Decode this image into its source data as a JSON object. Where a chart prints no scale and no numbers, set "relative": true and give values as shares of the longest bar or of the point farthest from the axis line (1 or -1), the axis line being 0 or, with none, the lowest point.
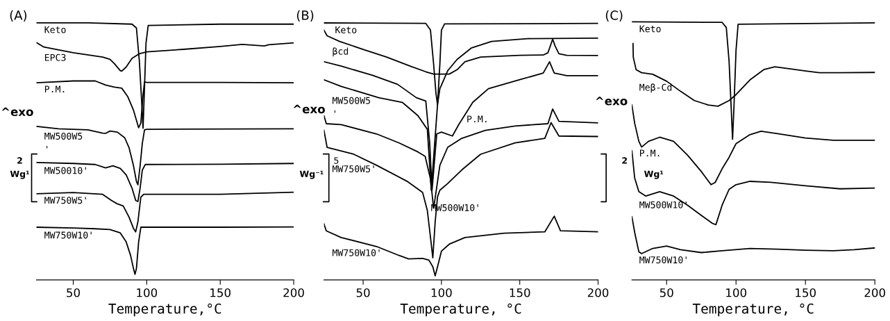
{
  "chart_data": [
    {
      "type": "line",
      "title": "(A)",
      "xlabel": "Temperature,°C",
      "relative": true,
      "xlim": [
        25,
        200
      ],
      "xticks": [
        50,
        100,
        150,
        200
      ],
      "tick_labels": "x",
      "annotations": [
        "^exo",
        "2",
        "Wg¹"
      ],
      "series": [
        {
          "name": "Keto",
          "color": "#000000",
          "x": [
            25,
            60,
            90,
            93,
            95,
            96.5,
            97.5,
            98.5,
            99.5,
            101,
            150,
            200
          ],
          "values": [
            1.0,
            1.0,
            0.995,
            0.98,
            0.85,
            0.7,
            0.59,
            0.75,
            0.92,
            0.99,
            0.995,
            0.995
          ]
        },
        {
          "name": "EPC3",
          "color": "#000000",
          "x": [
            25,
            30,
            50,
            70,
            75,
            78,
            82,
            83,
            86,
            90,
            95,
            100,
            125,
            150,
            165,
            180,
            183,
            200
          ],
          "values": [
            0.923,
            0.906,
            0.884,
            0.867,
            0.858,
            0.841,
            0.814,
            0.812,
            0.828,
            0.862,
            0.88,
            0.887,
            0.897,
            0.908,
            0.916,
            0.91,
            0.915,
            0.922
          ]
        },
        {
          "name": "P.M.",
          "color": "#000000",
          "x": [
            25,
            50,
            65,
            72,
            78,
            83,
            87,
            91,
            94.5,
            96,
            97.5,
            98.5,
            100,
            150,
            200
          ],
          "values": [
            0.767,
            0.774,
            0.774,
            0.758,
            0.75,
            0.746,
            0.714,
            0.66,
            0.592,
            0.61,
            0.72,
            0.77,
            0.768,
            0.768,
            0.767
          ]
        },
        {
          "name": "MW500W5\n'",
          "color": "#000000",
          "x": [
            25,
            40,
            60,
            70,
            72,
            75,
            80,
            85,
            88,
            91,
            93,
            94,
            95.5,
            97,
            98.5,
            100,
            200
          ],
          "values": [
            0.597,
            0.588,
            0.584,
            0.571,
            0.57,
            0.579,
            0.575,
            0.553,
            0.514,
            0.444,
            0.383,
            0.37,
            0.444,
            0.531,
            0.584,
            0.586,
            0.588
          ]
        },
        {
          "name": "MW50010'",
          "color": "#000000",
          "x": [
            25,
            50,
            65,
            72,
            77,
            82,
            86,
            90,
            92.5,
            94,
            95.5,
            97,
            99,
            150,
            200
          ],
          "values": [
            0.457,
            0.453,
            0.449,
            0.436,
            0.444,
            0.434,
            0.409,
            0.357,
            0.309,
            0.305,
            0.357,
            0.427,
            0.449,
            0.45,
            0.453
          ]
        },
        {
          "name": "MW750W5'",
          "color": "#000000",
          "x": [
            25,
            50,
            70,
            76,
            80,
            84,
            88,
            91,
            92.5,
            94,
            96,
            98,
            150,
            200
          ],
          "values": [
            0.335,
            0.34,
            0.333,
            0.309,
            0.296,
            0.288,
            0.244,
            0.2,
            0.187,
            0.226,
            0.322,
            0.333,
            0.333,
            0.341
          ]
        },
        {
          "name": "MW750W10'",
          "color": "#000000",
          "x": [
            25,
            50,
            65,
            75,
            82,
            86,
            89,
            91,
            92,
            93,
            94.5,
            96,
            150,
            200
          ],
          "values": [
            0.205,
            0.202,
            0.199,
            0.196,
            0.183,
            0.148,
            0.096,
            0.044,
            0.022,
            0.044,
            0.148,
            0.205,
            0.205,
            0.206
          ]
        }
      ]
    },
    {
      "type": "line",
      "title": "(B)",
      "xlabel": "Temperature, °C",
      "relative": true,
      "xlim": [
        25,
        200
      ],
      "xticks": [
        50,
        100,
        150,
        200
      ],
      "tick_labels": "x",
      "annotations": [
        "^exo",
        "5",
        "Wg⁻¹"
      ],
      "series": [
        {
          "name": "Keto",
          "color": "#000000",
          "x": [
            25,
            90,
            93,
            95,
            96.5,
            97.5,
            99,
            100,
            102,
            200
          ],
          "values": [
            1.0,
            0.998,
            0.972,
            0.84,
            0.726,
            0.682,
            0.84,
            0.972,
            0.996,
            0.998
          ]
        },
        {
          "name": "βcd",
          "color": "#000000",
          "x": [
            25,
            27,
            35,
            50,
            65,
            80,
            90,
            95,
            100,
            105,
            110,
            115,
            125,
            150,
            165,
            168,
            170,
            171,
            172.5,
            175,
            180,
            200
          ],
          "values": [
            0.972,
            0.95,
            0.928,
            0.897,
            0.867,
            0.832,
            0.81,
            0.801,
            0.801,
            0.801,
            0.818,
            0.849,
            0.867,
            0.874,
            0.875,
            0.884,
            0.919,
            0.937,
            0.911,
            0.88,
            0.874,
            0.873
          ]
        },
        {
          "name": "P.M.",
          "color": "#000000",
          "x": [
            25,
            36,
            56,
            72,
            84,
            90,
            92.5,
            94,
            97,
            100,
            107,
            111,
            120,
            130,
            150,
            165,
            169,
            172,
            180,
            200
          ],
          "values": [
            0.849,
            0.832,
            0.796,
            0.761,
            0.709,
            0.696,
            0.533,
            0.349,
            0.568,
            0.575,
            0.56,
            0.604,
            0.691,
            0.744,
            0.779,
            0.805,
            0.849,
            0.805,
            0.795,
            0.795
          ]
        },
        {
          "name": "MW500W5\n'",
          "color": "#000000",
          "x": [
            25,
            36,
            60,
            75,
            85,
            91,
            93.5,
            97.5,
            99,
            104,
            110,
            119,
            132,
            155,
            200
          ],
          "values": [
            0.779,
            0.753,
            0.709,
            0.691,
            0.639,
            0.586,
            0.349,
            0.682,
            0.744,
            0.814,
            0.858,
            0.902,
            0.928,
            0.939,
            0.941
          ]
        },
        {
          "name": "MW500W10'",
          "color": "#000000",
          "x": [
            25,
            26.5,
            36,
            58.6,
            73,
            85,
            89.6,
            93,
            95,
            96.5,
            99,
            104,
            113,
            128,
            147,
            168,
            171,
            175,
            200
          ],
          "values": [
            0.639,
            0.608,
            0.604,
            0.568,
            0.533,
            0.498,
            0.481,
            0.393,
            0.279,
            0.34,
            0.446,
            0.516,
            0.551,
            0.582,
            0.599,
            0.608,
            0.665,
            0.617,
            0.611
          ]
        },
        {
          "name": "MW750W5'",
          "color": "#000000",
          "x": [
            25,
            27,
            44,
            58.6,
            78,
            88,
            91,
            93.5,
            94.5,
            96,
            97.5,
            99,
            104,
            113,
            125,
            147,
            166,
            170,
            175,
            200
          ],
          "values": [
            0.582,
            0.516,
            0.489,
            0.446,
            0.384,
            0.34,
            0.27,
            0.139,
            0.086,
            0.226,
            0.323,
            0.349,
            0.375,
            0.428,
            0.489,
            0.533,
            0.551,
            0.612,
            0.56,
            0.558
          ]
        },
        {
          "name": "MW750W10'",
          "color": "#000000",
          "x": [
            25,
            26.5,
            36,
            58.6,
            73,
            79,
            88,
            92,
            94.5,
            96,
            97.5,
            100,
            105,
            115,
            140,
            166,
            172,
            176,
            200
          ],
          "values": [
            0.218,
            0.191,
            0.165,
            0.13,
            0.095,
            0.082,
            0.084,
            0.077,
            0.051,
            0.016,
            0.051,
            0.112,
            0.139,
            0.165,
            0.182,
            0.187,
            0.248,
            0.191,
            0.187
          ]
        }
      ]
    },
    {
      "type": "line",
      "title": "(C)",
      "xlabel": "Temperature, °C",
      "relative": true,
      "xlim": [
        25,
        200
      ],
      "xticks": [
        50,
        100,
        150,
        200
      ],
      "tick_labels": "x",
      "annotations": [
        "^exo",
        "2",
        "Wg¹"
      ],
      "series": [
        {
          "name": "Keto",
          "color": "#000000",
          "x": [
            25,
            90,
            93,
            95,
            96.5,
            97.5,
            98.5,
            100,
            101.5,
            200
          ],
          "values": [
            1.0,
            0.998,
            0.978,
            0.846,
            0.669,
            0.545,
            0.669,
            0.89,
            0.991,
            0.996
          ]
        },
        {
          "name": "Meβ-Cd",
          "color": "#000000",
          "x": [
            25.8,
            26,
            28,
            32,
            40,
            50,
            60,
            70,
            80,
            87,
            95,
            100,
            110,
            120,
            128,
            140,
            150,
            160,
            175,
            200
          ],
          "values": [
            0.916,
            0.863,
            0.815,
            0.803,
            0.797,
            0.77,
            0.731,
            0.695,
            0.678,
            0.673,
            0.695,
            0.718,
            0.775,
            0.815,
            0.826,
            0.817,
            0.81,
            0.803,
            0.803,
            0.804
          ]
        },
        {
          "name": "P.M.",
          "color": "#000000",
          "x": [
            25,
            27,
            30,
            32,
            37,
            45,
            55,
            65,
            75,
            82,
            85,
            90,
            95,
            100,
            110,
            118,
            130,
            150,
            170,
            200
          ],
          "values": [
            0.678,
            0.607,
            0.537,
            0.515,
            0.537,
            0.553,
            0.537,
            0.484,
            0.42,
            0.369,
            0.378,
            0.431,
            0.475,
            0.528,
            0.563,
            0.576,
            0.567,
            0.55,
            0.541,
            0.541
          ]
        },
        {
          "name": "MW500W10'",
          "color": "#000000",
          "x": [
            25,
            27,
            30,
            35,
            45,
            55,
            65,
            75,
            83,
            85.5,
            90,
            95,
            100,
            110,
            125,
            150,
            175,
            200
          ],
          "values": [
            0.501,
            0.395,
            0.342,
            0.325,
            0.342,
            0.325,
            0.29,
            0.25,
            0.219,
            0.214,
            0.29,
            0.351,
            0.369,
            0.382,
            0.378,
            0.365,
            0.353,
            0.356
          ]
        },
        {
          "name": "MW750W10'",
          "color": "#000000",
          "x": [
            25,
            27,
            30,
            32,
            40,
            50,
            60,
            75,
            90,
            110,
            130,
            150,
            170,
            185,
            200
          ],
          "values": [
            0.245,
            0.184,
            0.109,
            0.102,
            0.122,
            0.131,
            0.117,
            0.106,
            0.113,
            0.122,
            0.119,
            0.115,
            0.113,
            0.117,
            0.124
          ]
        }
      ]
    }
  ]
}
